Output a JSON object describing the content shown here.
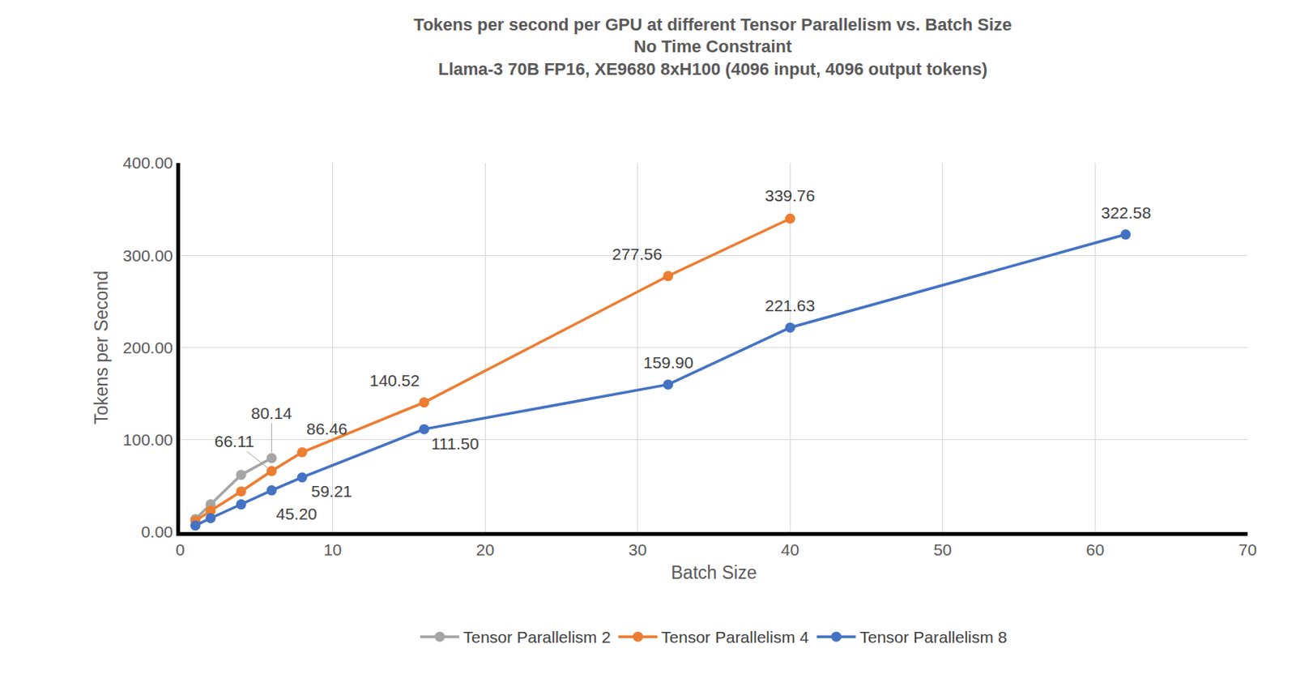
{
  "chart_data": {
    "type": "line",
    "title": "Tokens per second per GPU at different Tensor Parallelism vs. Batch Size",
    "subtitle": [
      "No Time Constraint",
      "Llama-3 70B FP16, XE9680 8xH100 (4096 input, 4096 output tokens)"
    ],
    "x_label": "Batch Size",
    "y_label": "Tokens per Second",
    "xlim": [
      0,
      70
    ],
    "xticks": [
      0,
      10,
      20,
      30,
      40,
      50,
      60,
      70
    ],
    "ylim": [
      0,
      400
    ],
    "yticks": [
      {
        "value": 0,
        "label": "0.00"
      },
      {
        "value": 100,
        "label": "100.00"
      },
      {
        "value": 200,
        "label": "200.00"
      },
      {
        "value": 300,
        "label": "300.00"
      },
      {
        "value": 400,
        "label": "400.00"
      }
    ],
    "grid": true,
    "legend": "bottom",
    "data_labels": true,
    "marker": "circle",
    "line_style": "solid",
    "series": [
      {
        "name": "Tensor Parallelism 2",
        "color": "#A5A5A5",
        "x": [
          1,
          2,
          4,
          6
        ],
        "values": [
          14,
          30,
          62,
          80.14
        ],
        "value_labels": [
          null,
          null,
          null,
          "80.14"
        ]
      },
      {
        "name": "Tensor Parallelism 4",
        "color": "#ED7D31",
        "x": [
          1,
          2,
          4,
          6,
          8,
          16,
          32,
          40
        ],
        "values": [
          12,
          23,
          44,
          66.11,
          86.46,
          140.52,
          277.56,
          339.76
        ],
        "value_labels": [
          null,
          null,
          null,
          "66.11",
          "86.46",
          "140.52",
          "277.56",
          "339.76"
        ]
      },
      {
        "name": "Tensor Parallelism 8",
        "color": "#4472C4",
        "x": [
          1,
          2,
          4,
          6,
          8,
          16,
          32,
          40,
          62
        ],
        "values": [
          7,
          15,
          30,
          45.2,
          59.21,
          111.5,
          159.9,
          221.63,
          322.58
        ],
        "value_labels": [
          null,
          null,
          null,
          "45.20",
          "59.21",
          "111.50",
          "159.90",
          "221.63",
          "322.58"
        ]
      }
    ]
  }
}
